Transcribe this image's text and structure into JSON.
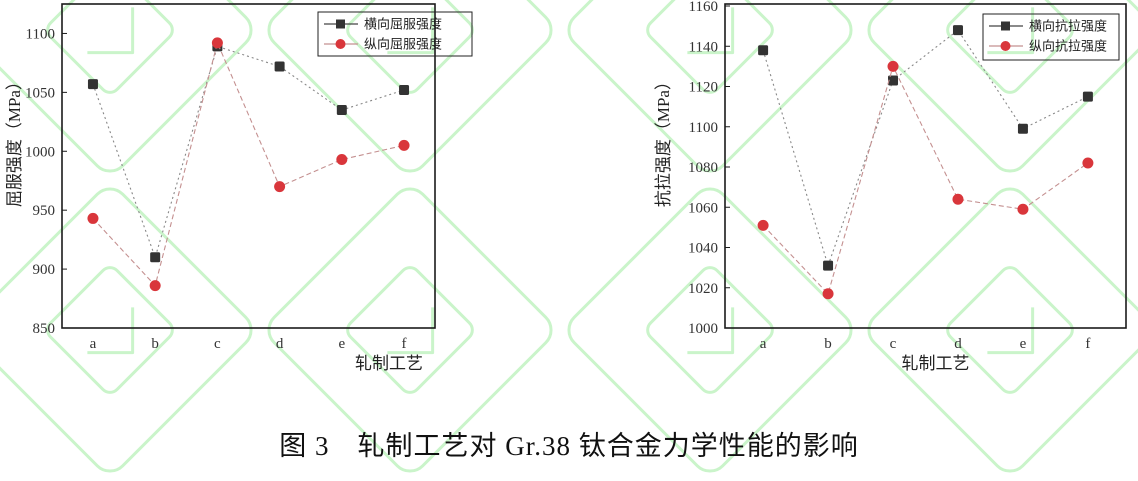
{
  "figure": {
    "caption": "图 3　轧制工艺对 Gr.38 钛合金力学性能的影响"
  },
  "colors": {
    "transverse_marker": "#333333",
    "transverse_line": "#888888",
    "longitudinal_marker": "#d9363b",
    "longitudinal_line": "#c49090",
    "axis": "#1a1a1a",
    "tick_text": "#333333",
    "watermark_green": "#a6eda6"
  },
  "chart_data": [
    {
      "type": "line",
      "title": "",
      "categories": [
        "a",
        "b",
        "c",
        "d",
        "e",
        "f"
      ],
      "series": [
        {
          "name": "横向屈服强度",
          "marker": "square",
          "values": [
            1057,
            910,
            1089,
            1072,
            1035,
            1052
          ]
        },
        {
          "name": "纵向屈服强度",
          "marker": "circle",
          "values": [
            943,
            886,
            1092,
            970,
            993,
            1005
          ]
        }
      ],
      "xlabel": "轧制工艺",
      "ylabel": "屈服强度（MPa）",
      "ylim": [
        850,
        1125
      ],
      "yticks": [
        850,
        900,
        950,
        1000,
        1050,
        1100
      ],
      "grid": false,
      "legend_position": "top-right"
    },
    {
      "type": "line",
      "title": "",
      "categories": [
        "a",
        "b",
        "c",
        "d",
        "e",
        "f"
      ],
      "series": [
        {
          "name": "横向抗拉强度",
          "marker": "square",
          "values": [
            1138,
            1031,
            1123,
            1148,
            1099,
            1115
          ]
        },
        {
          "name": "纵向抗拉强度",
          "marker": "circle",
          "values": [
            1051,
            1017,
            1130,
            1064,
            1059,
            1082
          ]
        }
      ],
      "xlabel": "轧制工艺",
      "ylabel": "抗拉强度（MPa）",
      "ylim": [
        1000,
        1161
      ],
      "yticks": [
        1000,
        1020,
        1040,
        1060,
        1080,
        1100,
        1120,
        1140,
        1160
      ],
      "grid": false,
      "legend_position": "top-right"
    }
  ]
}
